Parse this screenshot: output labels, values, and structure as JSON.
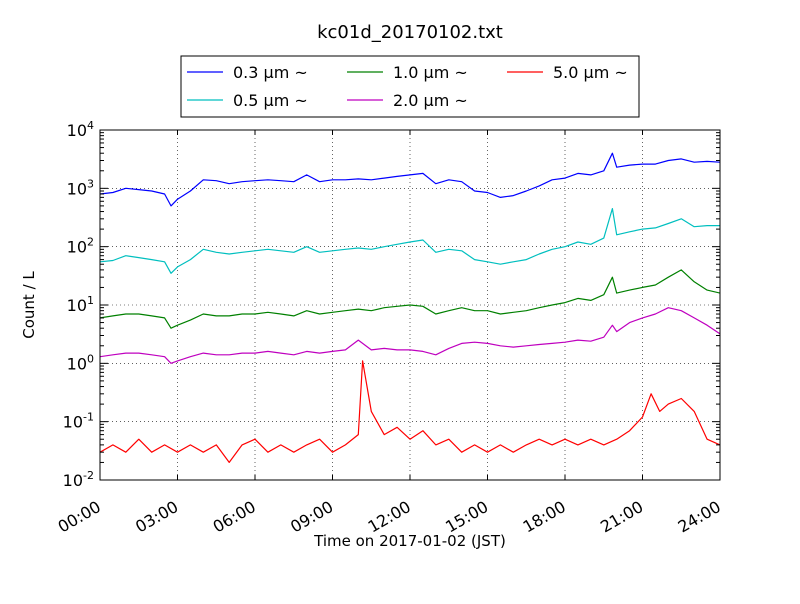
{
  "chart_data": {
    "type": "line",
    "title": "kc01d_20170102.txt",
    "xlabel": "Time on 2017-01-02 (JST)",
    "ylabel": "Count / L",
    "yscale": "log",
    "ylim": [
      0.01,
      10000
    ],
    "xlim": [
      "00:00",
      "24:00"
    ],
    "x_ticks": [
      "00:00",
      "03:00",
      "06:00",
      "09:00",
      "12:00",
      "15:00",
      "18:00",
      "21:00",
      "24:00"
    ],
    "y_ticks": [
      {
        "value": 0.01,
        "base": "10",
        "exp": "-2"
      },
      {
        "value": 0.1,
        "base": "10",
        "exp": "-1"
      },
      {
        "value": 1,
        "base": "10",
        "exp": "0"
      },
      {
        "value": 10,
        "base": "10",
        "exp": "1"
      },
      {
        "value": 100,
        "base": "10",
        "exp": "2"
      },
      {
        "value": 1000,
        "base": "10",
        "exp": "3"
      },
      {
        "value": 10000,
        "base": "10",
        "exp": "4"
      }
    ],
    "grid": true,
    "legend_position": "top-center",
    "series": [
      {
        "name": "0.3 μm ~",
        "color": "#0000ff",
        "x": [
          "00:00",
          "00:30",
          "01:00",
          "01:30",
          "02:00",
          "02:30",
          "02:45",
          "03:00",
          "03:30",
          "04:00",
          "04:30",
          "05:00",
          "05:30",
          "06:00",
          "06:30",
          "07:00",
          "07:30",
          "08:00",
          "08:30",
          "09:00",
          "09:30",
          "10:00",
          "10:30",
          "11:00",
          "11:30",
          "12:00",
          "12:30",
          "13:00",
          "13:30",
          "14:00",
          "14:30",
          "15:00",
          "15:30",
          "16:00",
          "16:30",
          "17:00",
          "17:30",
          "18:00",
          "18:30",
          "19:00",
          "19:30",
          "19:50",
          "20:00",
          "20:30",
          "21:00",
          "21:30",
          "22:00",
          "22:30",
          "23:00",
          "23:30",
          "24:00"
        ],
        "values": [
          800,
          850,
          1000,
          950,
          900,
          800,
          500,
          650,
          900,
          1400,
          1350,
          1200,
          1300,
          1350,
          1400,
          1350,
          1300,
          1700,
          1300,
          1400,
          1400,
          1450,
          1400,
          1500,
          1600,
          1700,
          1800,
          1200,
          1400,
          1300,
          900,
          850,
          700,
          750,
          900,
          1100,
          1400,
          1500,
          1800,
          1700,
          2000,
          4000,
          2300,
          2500,
          2600,
          2600,
          3000,
          3200,
          2800,
          2900,
          2800
        ]
      },
      {
        "name": "0.5 μm ~",
        "color": "#00bfbf",
        "x": [
          "00:00",
          "00:30",
          "01:00",
          "01:30",
          "02:00",
          "02:30",
          "02:45",
          "03:00",
          "03:30",
          "04:00",
          "04:30",
          "05:00",
          "05:30",
          "06:00",
          "06:30",
          "07:00",
          "07:30",
          "08:00",
          "08:30",
          "09:00",
          "09:30",
          "10:00",
          "10:30",
          "11:00",
          "11:30",
          "12:00",
          "12:30",
          "13:00",
          "13:30",
          "14:00",
          "14:30",
          "15:00",
          "15:30",
          "16:00",
          "16:30",
          "17:00",
          "17:30",
          "18:00",
          "18:30",
          "19:00",
          "19:30",
          "19:50",
          "20:00",
          "20:30",
          "21:00",
          "21:30",
          "22:00",
          "22:30",
          "23:00",
          "23:30",
          "24:00"
        ],
        "values": [
          55,
          58,
          70,
          65,
          60,
          55,
          35,
          45,
          60,
          90,
          80,
          75,
          80,
          85,
          90,
          85,
          80,
          100,
          80,
          85,
          90,
          95,
          90,
          100,
          110,
          120,
          130,
          80,
          90,
          85,
          60,
          55,
          50,
          55,
          60,
          75,
          90,
          100,
          120,
          110,
          140,
          450,
          160,
          180,
          200,
          210,
          250,
          300,
          220,
          230,
          230
        ]
      },
      {
        "name": "1.0 μm ~",
        "color": "#008000",
        "x": [
          "00:00",
          "00:30",
          "01:00",
          "01:30",
          "02:00",
          "02:30",
          "02:45",
          "03:00",
          "03:30",
          "04:00",
          "04:30",
          "05:00",
          "05:30",
          "06:00",
          "06:30",
          "07:00",
          "07:30",
          "08:00",
          "08:30",
          "09:00",
          "09:30",
          "10:00",
          "10:30",
          "11:00",
          "11:30",
          "12:00",
          "12:30",
          "13:00",
          "13:30",
          "14:00",
          "14:30",
          "15:00",
          "15:30",
          "16:00",
          "16:30",
          "17:00",
          "17:30",
          "18:00",
          "18:30",
          "19:00",
          "19:30",
          "19:50",
          "20:00",
          "20:30",
          "21:00",
          "21:30",
          "22:00",
          "22:30",
          "23:00",
          "23:30",
          "24:00"
        ],
        "values": [
          6,
          6.5,
          7,
          7,
          6.5,
          6,
          4,
          4.5,
          5.5,
          7,
          6.5,
          6.5,
          7,
          7,
          7.5,
          7,
          6.5,
          8,
          7,
          7.5,
          8,
          8.5,
          8,
          9,
          9.5,
          10,
          9.5,
          7,
          8,
          9,
          8,
          8,
          7,
          7.5,
          8,
          9,
          10,
          11,
          13,
          12,
          15,
          30,
          16,
          18,
          20,
          22,
          30,
          40,
          25,
          18,
          16
        ]
      },
      {
        "name": "2.0 μm ~",
        "color": "#bf00bf",
        "x": [
          "00:00",
          "00:30",
          "01:00",
          "01:30",
          "02:00",
          "02:30",
          "02:45",
          "03:00",
          "03:30",
          "04:00",
          "04:30",
          "05:00",
          "05:30",
          "06:00",
          "06:30",
          "07:00",
          "07:30",
          "08:00",
          "08:30",
          "09:00",
          "09:30",
          "10:00",
          "10:30",
          "11:00",
          "11:30",
          "12:00",
          "12:30",
          "13:00",
          "13:30",
          "14:00",
          "14:30",
          "15:00",
          "15:30",
          "16:00",
          "16:30",
          "17:00",
          "17:30",
          "18:00",
          "18:30",
          "19:00",
          "19:30",
          "19:50",
          "20:00",
          "20:30",
          "21:00",
          "21:30",
          "22:00",
          "22:30",
          "23:00",
          "23:30",
          "24:00"
        ],
        "values": [
          1.3,
          1.4,
          1.5,
          1.5,
          1.4,
          1.3,
          1.0,
          1.1,
          1.3,
          1.5,
          1.4,
          1.4,
          1.5,
          1.5,
          1.6,
          1.5,
          1.4,
          1.6,
          1.5,
          1.6,
          1.7,
          2.5,
          1.7,
          1.8,
          1.7,
          1.7,
          1.6,
          1.4,
          1.8,
          2.2,
          2.3,
          2.2,
          2.0,
          1.9,
          2.0,
          2.1,
          2.2,
          2.3,
          2.5,
          2.4,
          2.8,
          4.5,
          3.5,
          5,
          6,
          7,
          9,
          8,
          6,
          4.5,
          3.2
        ]
      },
      {
        "name": "5.0 μm ~",
        "color": "#ff0000",
        "x": [
          "00:00",
          "00:30",
          "01:00",
          "01:30",
          "02:00",
          "02:30",
          "03:00",
          "03:30",
          "04:00",
          "04:30",
          "05:00",
          "05:30",
          "06:00",
          "06:30",
          "07:00",
          "07:30",
          "08:00",
          "08:30",
          "09:00",
          "09:30",
          "10:00",
          "10:10",
          "10:30",
          "11:00",
          "11:30",
          "12:00",
          "12:30",
          "13:00",
          "13:30",
          "14:00",
          "14:30",
          "15:00",
          "15:30",
          "16:00",
          "16:30",
          "17:00",
          "17:30",
          "18:00",
          "18:30",
          "19:00",
          "19:30",
          "20:00",
          "20:30",
          "21:00",
          "21:20",
          "21:40",
          "22:00",
          "22:30",
          "23:00",
          "23:30",
          "24:00"
        ],
        "values": [
          0.03,
          0.04,
          0.03,
          0.05,
          0.03,
          0.04,
          0.03,
          0.04,
          0.03,
          0.04,
          0.02,
          0.04,
          0.05,
          0.03,
          0.04,
          0.03,
          0.04,
          0.05,
          0.03,
          0.04,
          0.06,
          1.1,
          0.15,
          0.06,
          0.08,
          0.05,
          0.07,
          0.04,
          0.05,
          0.03,
          0.04,
          0.03,
          0.04,
          0.03,
          0.04,
          0.05,
          0.04,
          0.05,
          0.04,
          0.05,
          0.04,
          0.05,
          0.07,
          0.12,
          0.3,
          0.15,
          0.2,
          0.25,
          0.15,
          0.05,
          0.04
        ]
      }
    ]
  }
}
